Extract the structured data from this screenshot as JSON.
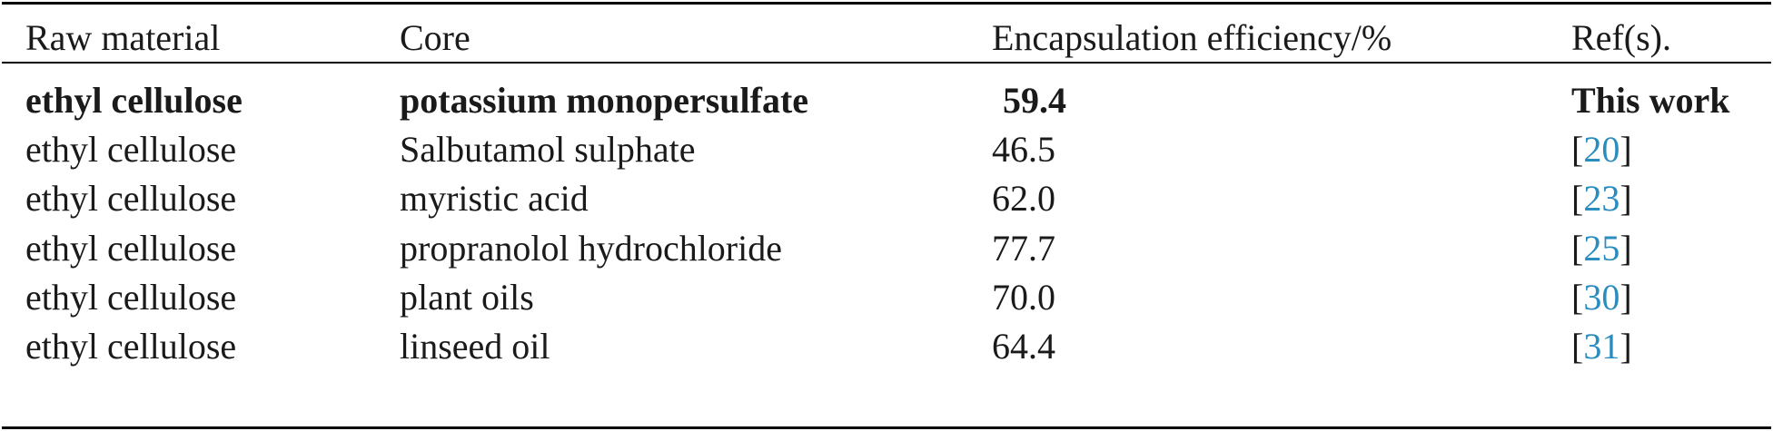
{
  "table": {
    "headers": [
      "Raw material",
      "Core",
      "Encapsulation efficiency/%",
      "Ref(s)."
    ],
    "rows": [
      {
        "raw_material": "ethyl cellulose",
        "core": "potassium monopersulfate",
        "efficiency": "59.4",
        "ref": "This work",
        "is_link": false,
        "bold": true
      },
      {
        "raw_material": "ethyl cellulose",
        "core": "Salbutamol sulphate",
        "efficiency": "46.5",
        "ref": "20",
        "is_link": true,
        "bold": false
      },
      {
        "raw_material": "ethyl cellulose",
        "core": "myristic acid",
        "efficiency": "62.0",
        "ref": "23",
        "is_link": true,
        "bold": false
      },
      {
        "raw_material": "ethyl cellulose",
        "core": "propranolol hydrochloride",
        "efficiency": "77.7",
        "ref": "25",
        "is_link": true,
        "bold": false
      },
      {
        "raw_material": "ethyl cellulose",
        "core": "plant oils",
        "efficiency": "70.0",
        "ref": "30",
        "is_link": true,
        "bold": false
      },
      {
        "raw_material": "ethyl cellulose",
        "core": "linseed oil",
        "efficiency": "64.4",
        "ref": "31",
        "is_link": true,
        "bold": false
      }
    ]
  },
  "colors": {
    "link": "#2b8cbe",
    "text": "#1a1a1a",
    "rule": "#000000"
  }
}
